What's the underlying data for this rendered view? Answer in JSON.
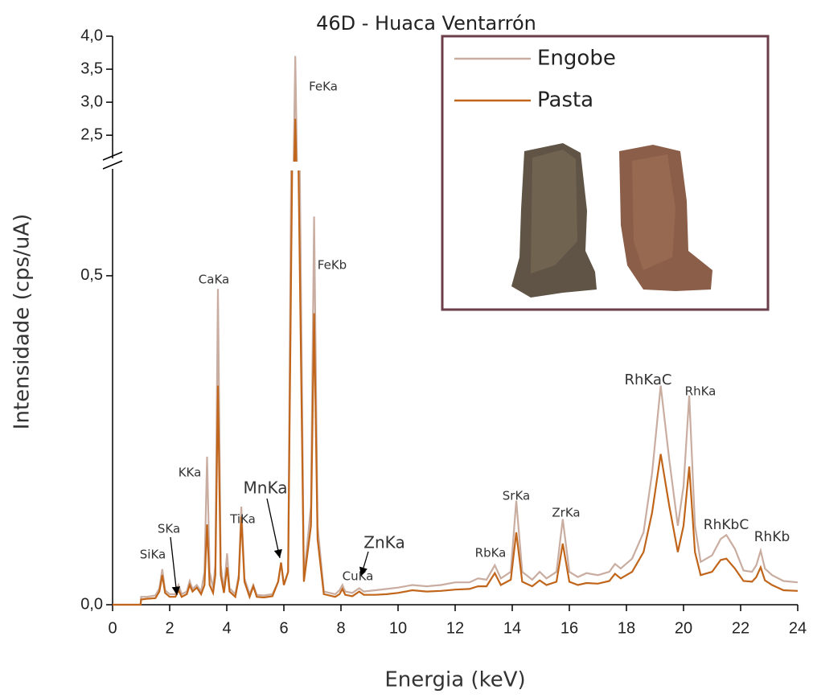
{
  "chart_data": {
    "type": "line",
    "title": "46D - Huaca Ventarrón",
    "x_label": "Energia (keV)",
    "y_label": "Intensidade (cps/uA)",
    "xlim": [
      0,
      24
    ],
    "xticks": [
      0,
      2,
      4,
      6,
      8,
      10,
      12,
      14,
      16,
      18,
      20,
      22,
      24
    ],
    "ylim": [
      0,
      0.66
    ],
    "yticks": [
      {
        "value": 0,
        "label": "0,0"
      },
      {
        "value": 0.5,
        "label": "0,5"
      }
    ],
    "ylim_upper": [
      2.1,
      4.0
    ],
    "yticks_upper": [
      {
        "value": 2.5,
        "label": "2,5"
      },
      {
        "value": 3.0,
        "label": "3,0"
      },
      {
        "value": 3.5,
        "label": "3,5"
      },
      {
        "value": 4.0,
        "label": "4,0"
      }
    ],
    "axis_break": true,
    "legend": "upper right",
    "annotations": [
      "SiKa",
      "SKa",
      "KKa",
      "CaKa",
      "TiKa",
      "MnKa",
      "FeKa",
      "FeKb",
      "CuKa",
      "ZnKa",
      "RbKa",
      "SrKa",
      "ZrKa",
      "RhKaC",
      "RhKa",
      "RhKbC",
      "RhKb"
    ],
    "x": [
      0,
      0.98,
      1.0,
      1.2,
      1.5,
      1.64,
      1.74,
      1.84,
      2.0,
      2.2,
      2.31,
      2.42,
      2.6,
      2.7,
      2.8,
      2.95,
      3.1,
      3.22,
      3.31,
      3.4,
      3.52,
      3.6,
      3.69,
      3.79,
      3.9,
      4.01,
      4.1,
      4.3,
      4.42,
      4.51,
      4.62,
      4.8,
      4.93,
      5.05,
      5.3,
      5.6,
      5.8,
      5.9,
      6.0,
      6.15,
      6.3,
      6.4,
      6.5,
      6.7,
      6.95,
      7.06,
      7.18,
      7.4,
      7.8,
      7.95,
      8.05,
      8.15,
      8.4,
      8.64,
      8.8,
      9.2,
      9.6,
      10.0,
      10.5,
      11.0,
      11.5,
      12.0,
      12.5,
      12.8,
      13.1,
      13.39,
      13.6,
      13.95,
      14.14,
      14.35,
      14.7,
      14.96,
      15.2,
      15.55,
      15.77,
      16.0,
      16.3,
      16.6,
      17.0,
      17.4,
      17.6,
      17.8,
      18.2,
      18.6,
      18.9,
      19.2,
      19.5,
      19.8,
      20.0,
      20.2,
      20.4,
      20.6,
      21.0,
      21.3,
      21.5,
      21.8,
      22.1,
      22.4,
      22.55,
      22.7,
      22.85,
      23.1,
      23.5,
      24.0
    ],
    "series": [
      {
        "name": "Engobe",
        "color": "#c9ada0",
        "values": [
          0,
          0,
          0.012,
          0.012,
          0.014,
          0.025,
          0.054,
          0.022,
          0.016,
          0.016,
          0.03,
          0.016,
          0.02,
          0.036,
          0.024,
          0.03,
          0.02,
          0.05,
          0.225,
          0.05,
          0.025,
          0.06,
          0.48,
          0.06,
          0.022,
          0.078,
          0.025,
          0.016,
          0.045,
          0.149,
          0.04,
          0.016,
          0.03,
          0.015,
          0.014,
          0.016,
          0.035,
          0.064,
          0.03,
          0.05,
          0.9,
          3.7,
          0.9,
          0.04,
          0.15,
          0.59,
          0.12,
          0.02,
          0.016,
          0.022,
          0.03,
          0.02,
          0.018,
          0.025,
          0.02,
          0.022,
          0.024,
          0.026,
          0.03,
          0.028,
          0.03,
          0.034,
          0.034,
          0.04,
          0.038,
          0.06,
          0.04,
          0.05,
          0.158,
          0.05,
          0.038,
          0.05,
          0.04,
          0.05,
          0.13,
          0.05,
          0.042,
          0.048,
          0.045,
          0.05,
          0.062,
          0.055,
          0.07,
          0.11,
          0.2,
          0.333,
          0.22,
          0.12,
          0.18,
          0.318,
          0.12,
          0.065,
          0.075,
          0.1,
          0.106,
          0.085,
          0.052,
          0.05,
          0.06,
          0.082,
          0.055,
          0.045,
          0.036,
          0.034
        ]
      },
      {
        "name": "Pasta",
        "color": "#c0651a",
        "values": [
          0,
          0,
          0.008,
          0.009,
          0.01,
          0.02,
          0.045,
          0.018,
          0.012,
          0.012,
          0.022,
          0.012,
          0.016,
          0.03,
          0.02,
          0.026,
          0.016,
          0.03,
          0.122,
          0.03,
          0.018,
          0.045,
          0.333,
          0.045,
          0.018,
          0.057,
          0.02,
          0.012,
          0.04,
          0.134,
          0.035,
          0.012,
          0.028,
          0.012,
          0.011,
          0.013,
          0.035,
          0.064,
          0.03,
          0.05,
          0.7,
          2.75,
          0.7,
          0.035,
          0.12,
          0.443,
          0.1,
          0.016,
          0.012,
          0.016,
          0.024,
          0.015,
          0.013,
          0.02,
          0.015,
          0.015,
          0.016,
          0.018,
          0.022,
          0.02,
          0.021,
          0.023,
          0.024,
          0.028,
          0.028,
          0.048,
          0.03,
          0.038,
          0.11,
          0.035,
          0.028,
          0.037,
          0.03,
          0.035,
          0.093,
          0.035,
          0.03,
          0.033,
          0.032,
          0.036,
          0.047,
          0.04,
          0.05,
          0.08,
          0.14,
          0.229,
          0.15,
          0.08,
          0.12,
          0.21,
          0.08,
          0.045,
          0.05,
          0.068,
          0.07,
          0.055,
          0.036,
          0.035,
          0.042,
          0.057,
          0.037,
          0.03,
          0.022,
          0.021
        ]
      }
    ]
  }
}
